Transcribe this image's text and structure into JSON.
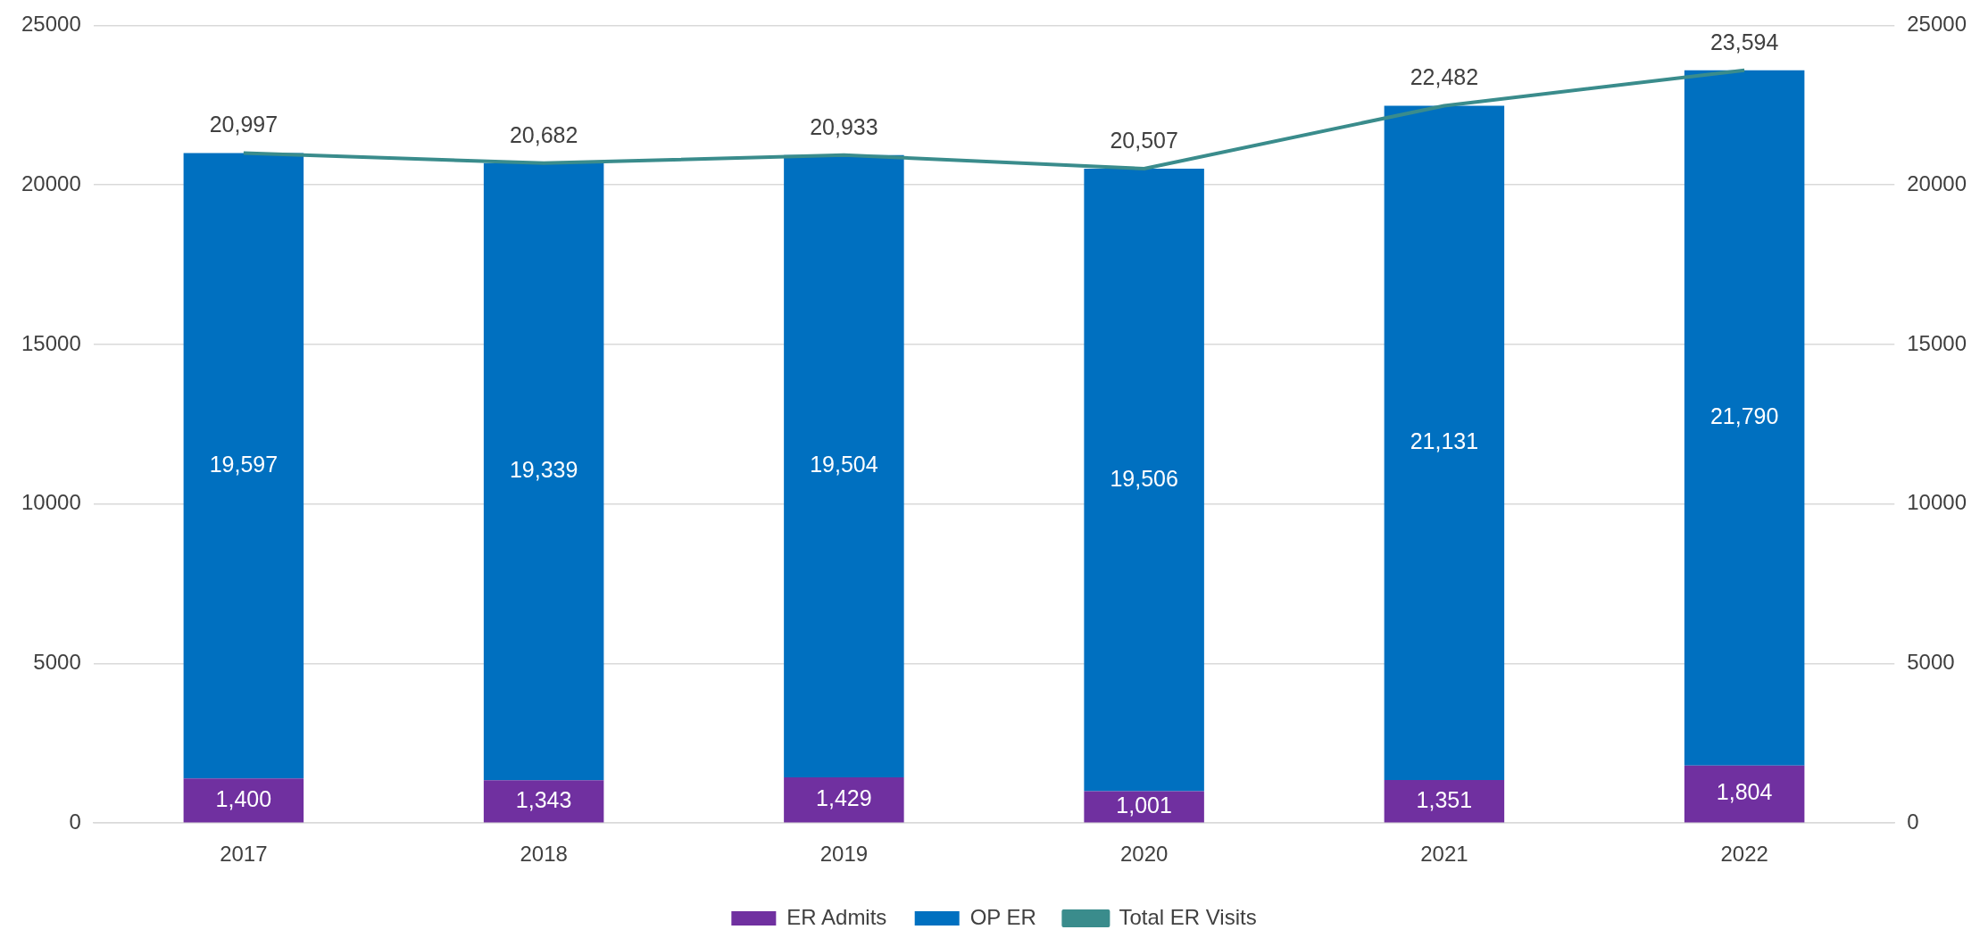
{
  "chart_data": {
    "type": "bar",
    "stacked": true,
    "categories": [
      "2017",
      "2018",
      "2019",
      "2020",
      "2021",
      "2022"
    ],
    "series": [
      {
        "name": "ER Admits",
        "color": "#7030a0",
        "values": [
          1400,
          1343,
          1429,
          1001,
          1351,
          1804
        ],
        "value_labels": [
          "1,400",
          "1,343",
          "1,429",
          "1,001",
          "1,351",
          "1,804"
        ]
      },
      {
        "name": "OP ER",
        "color": "#0070c0",
        "values": [
          19597,
          19339,
          19504,
          19506,
          21131,
          21790
        ],
        "value_labels": [
          "19,597",
          "19,339",
          "19,504",
          "19,506",
          "21,131",
          "21,790"
        ]
      },
      {
        "name": "Total ER Visits",
        "type": "line",
        "color": "#3a8c8c",
        "values": [
          20997,
          20682,
          20933,
          20507,
          22482,
          23594
        ],
        "value_labels": [
          "20,997",
          "20,682",
          "20,933",
          "20,507",
          "22,482",
          "23,594"
        ]
      }
    ],
    "ylim": [
      0,
      25000
    ],
    "yticks": [
      0,
      5000,
      10000,
      15000,
      20000,
      25000
    ],
    "y2lim": [
      0,
      25000
    ],
    "y2ticks": [
      0,
      5000,
      10000,
      15000,
      20000,
      25000
    ],
    "grid": "y",
    "legend": "bottom"
  }
}
